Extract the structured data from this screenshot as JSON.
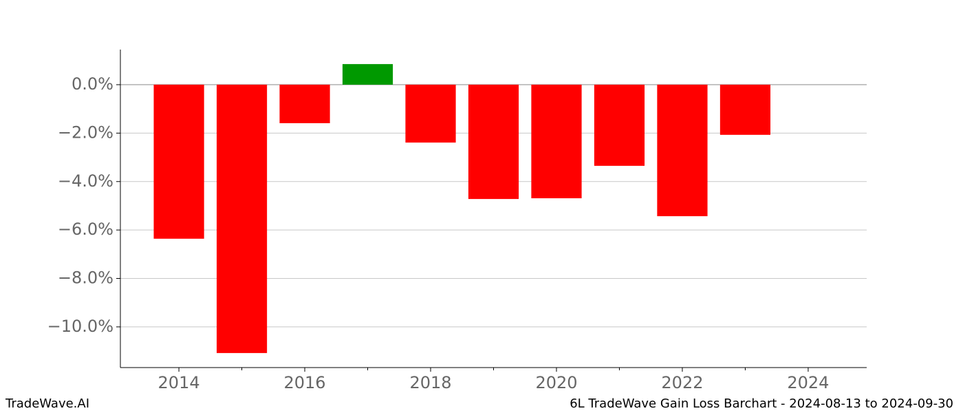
{
  "chart_data": {
    "type": "bar",
    "x": [
      2014,
      2015,
      2016,
      2017,
      2018,
      2019,
      2020,
      2021,
      2022,
      2023
    ],
    "values": [
      -6.36,
      -11.08,
      -1.59,
      0.85,
      -2.39,
      -4.72,
      -4.69,
      -3.35,
      -5.43,
      -2.07
    ],
    "positive_color": "#009900",
    "negative_color": "#ff0000",
    "xlim": [
      2013.07,
      2024.93
    ],
    "xticks": [
      2014,
      2016,
      2018,
      2020,
      2022,
      2024
    ],
    "x_minor_ticks": [
      2015,
      2017,
      2019,
      2021,
      2023
    ],
    "ylim": [
      -11.68,
      1.45
    ],
    "yticks": [
      {
        "value": 0,
        "label": "0.0%"
      },
      {
        "value": -2,
        "label": "−2.0%"
      },
      {
        "value": -4,
        "label": "−4.0%"
      },
      {
        "value": -6,
        "label": "−6.0%"
      },
      {
        "value": -8,
        "label": "−8.0%"
      },
      {
        "value": -10,
        "label": "−10.0%"
      }
    ],
    "grid": true,
    "footer_left": "TradeWave.AI",
    "footer_right": "6L TradeWave Gain Loss Barchart - 2024-08-13 to 2024-09-30"
  }
}
